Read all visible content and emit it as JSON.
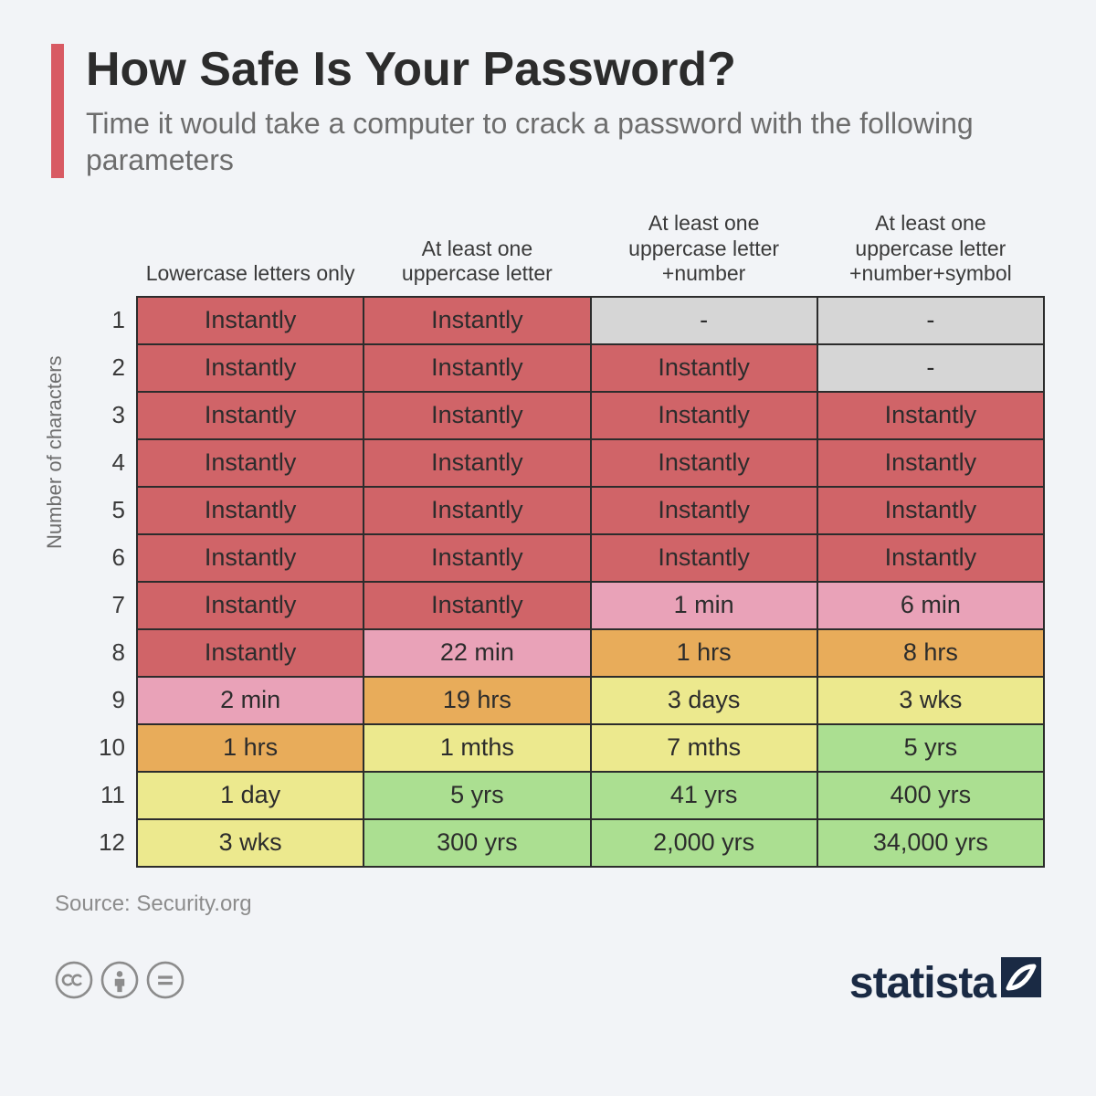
{
  "header": {
    "title": "How Safe Is Your Password?",
    "subtitle": "Time it would take a computer to crack a password with the following parameters",
    "accent_color": "#d85a63"
  },
  "axis": {
    "y_label": "Number of characters"
  },
  "table": {
    "columns": [
      "Lowercase letters only",
      "At least one uppercase letter",
      "At least one uppercase letter +number",
      "At least one uppercase letter +number+symbol"
    ],
    "row_labels": [
      "1",
      "2",
      "3",
      "4",
      "5",
      "6",
      "7",
      "8",
      "9",
      "10",
      "11",
      "12"
    ],
    "cells": [
      [
        {
          "v": "Instantly",
          "c": "red"
        },
        {
          "v": "Instantly",
          "c": "red"
        },
        {
          "v": "-",
          "c": "grey"
        },
        {
          "v": "-",
          "c": "grey"
        }
      ],
      [
        {
          "v": "Instantly",
          "c": "red"
        },
        {
          "v": "Instantly",
          "c": "red"
        },
        {
          "v": "Instantly",
          "c": "red"
        },
        {
          "v": "-",
          "c": "grey"
        }
      ],
      [
        {
          "v": "Instantly",
          "c": "red"
        },
        {
          "v": "Instantly",
          "c": "red"
        },
        {
          "v": "Instantly",
          "c": "red"
        },
        {
          "v": "Instantly",
          "c": "red"
        }
      ],
      [
        {
          "v": "Instantly",
          "c": "red"
        },
        {
          "v": "Instantly",
          "c": "red"
        },
        {
          "v": "Instantly",
          "c": "red"
        },
        {
          "v": "Instantly",
          "c": "red"
        }
      ],
      [
        {
          "v": "Instantly",
          "c": "red"
        },
        {
          "v": "Instantly",
          "c": "red"
        },
        {
          "v": "Instantly",
          "c": "red"
        },
        {
          "v": "Instantly",
          "c": "red"
        }
      ],
      [
        {
          "v": "Instantly",
          "c": "red"
        },
        {
          "v": "Instantly",
          "c": "red"
        },
        {
          "v": "Instantly",
          "c": "red"
        },
        {
          "v": "Instantly",
          "c": "red"
        }
      ],
      [
        {
          "v": "Instantly",
          "c": "red"
        },
        {
          "v": "Instantly",
          "c": "red"
        },
        {
          "v": "1 min",
          "c": "pink"
        },
        {
          "v": "6 min",
          "c": "pink"
        }
      ],
      [
        {
          "v": "Instantly",
          "c": "red"
        },
        {
          "v": "22 min",
          "c": "pink"
        },
        {
          "v": "1 hrs",
          "c": "orange"
        },
        {
          "v": "8 hrs",
          "c": "orange"
        }
      ],
      [
        {
          "v": "2 min",
          "c": "pink"
        },
        {
          "v": "19 hrs",
          "c": "orange"
        },
        {
          "v": "3 days",
          "c": "yellow"
        },
        {
          "v": "3 wks",
          "c": "yellow"
        }
      ],
      [
        {
          "v": "1 hrs",
          "c": "orange"
        },
        {
          "v": "1 mths",
          "c": "yellow"
        },
        {
          "v": "7 mths",
          "c": "yellow"
        },
        {
          "v": "5 yrs",
          "c": "green"
        }
      ],
      [
        {
          "v": "1 day",
          "c": "yellow"
        },
        {
          "v": "5 yrs",
          "c": "green"
        },
        {
          "v": "41 yrs",
          "c": "green"
        },
        {
          "v": "400 yrs",
          "c": "green"
        }
      ],
      [
        {
          "v": "3 wks",
          "c": "yellow"
        },
        {
          "v": "300 yrs",
          "c": "green"
        },
        {
          "v": "2,000 yrs",
          "c": "green"
        },
        {
          "v": "34,000 yrs",
          "c": "green"
        }
      ]
    ],
    "palette": {
      "red": "#d06468",
      "pink": "#e9a2b8",
      "orange": "#e8ac5a",
      "yellow": "#ece98e",
      "green": "#abdf91",
      "grey": "#d6d6d6"
    },
    "border_color": "#2c2c2c",
    "cell_fontsize": 27,
    "header_fontsize": 23
  },
  "source": "Source: Security.org",
  "brand": "statista",
  "colors": {
    "background": "#f2f4f7",
    "title": "#2c2c2c",
    "subtitle": "#6d6d6d",
    "source": "#8c8c8c",
    "brand": "#1a2a44",
    "icon": "#8c8c8c"
  }
}
